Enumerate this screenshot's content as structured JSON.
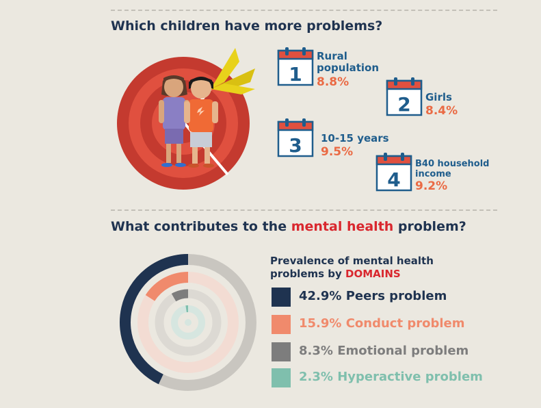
{
  "section1": {
    "title": "Which children have more problems?"
  },
  "rankings": [
    {
      "number": "1",
      "label_lines": [
        "Rural",
        "population"
      ],
      "value": "8.8%"
    },
    {
      "number": "2",
      "label_lines": [
        "Girls"
      ],
      "value": "8.4%"
    },
    {
      "number": "3",
      "label_lines": [
        "10-15 years"
      ],
      "value": "9.5%"
    },
    {
      "number": "4",
      "label_lines": [
        "B40 household",
        "income"
      ],
      "value": "9.2%"
    }
  ],
  "section2": {
    "title_before": "What contributes to the ",
    "title_highlight": "mental health",
    "title_after": " problem?"
  },
  "prevalence": {
    "title_line1": "Prevalence of mental health",
    "title_line2_before": "problems by ",
    "title_line2_highlight": "DOMAINS"
  },
  "colors": {
    "navy": "#1f3350",
    "salmon": "#f08a6c",
    "gray": "#7d7d7d",
    "teal": "#7fbfad",
    "red_accent": "#d9272e",
    "blue_label": "#1f5d8c",
    "orange_value": "#ea6a44"
  },
  "chart_data": {
    "type": "radial-bar",
    "title": "Prevalence of mental health problems by DOMAINS",
    "unit": "%",
    "max": 100,
    "series": [
      {
        "name": "Peers problem",
        "value": 42.9,
        "label": "42.9% Peers problem",
        "color": "#1f3350",
        "track": "#c9c6c0"
      },
      {
        "name": "Conduct problem",
        "value": 15.9,
        "label": "15.9% Conduct problem",
        "color": "#f08a6c",
        "track": "#f3dcd3"
      },
      {
        "name": "Emotional problem",
        "value": 8.3,
        "label": "8.3% Emotional problem",
        "color": "#7d7d7d",
        "track": "#dcd9d3"
      },
      {
        "name": "Hyperactive problem",
        "value": 2.3,
        "label": "2.3% Hyperactive problem",
        "color": "#7fbfad",
        "track": "#d6e6e0"
      }
    ]
  }
}
